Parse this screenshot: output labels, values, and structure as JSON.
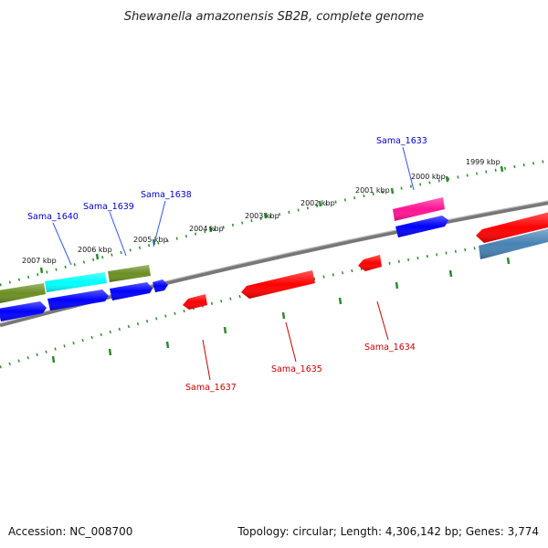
{
  "title": "Shewanella amazonensis SB2B, complete genome",
  "footer": {
    "accession": "Accession: NC_008700",
    "summary": "Topology: circular; Length: 4,306,142 bp; Genes: 3,774"
  },
  "kbp_labels": [
    "1999 kbp",
    "2000 kbp",
    "2001 kbp",
    "2002 kbp",
    "2003 kbp",
    "2004 kbp",
    "2005 kbp",
    "2006 kbp",
    "2007 kbp"
  ],
  "colors": {
    "blue": "#0000ff",
    "red": "#ff0000",
    "olive": "#6b8e23",
    "cyan": "#00ffff",
    "magenta": "#ff1493",
    "steelblue": "#4682b4",
    "backbone": "#808080",
    "tick": "#2e8b2e",
    "label_blue": "#0000cc",
    "label_red": "#cc0000"
  },
  "gene_labels": {
    "forward": [
      "Sama_1640",
      "Sama_1639",
      "Sama_1638",
      "Sama_1633"
    ],
    "reverse": [
      "Sama_1637",
      "Sama_1635",
      "Sama_1634"
    ]
  }
}
